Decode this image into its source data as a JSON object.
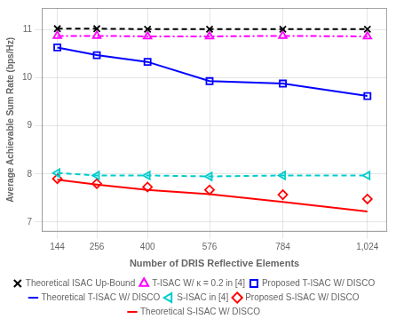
{
  "chart_data": {
    "type": "line",
    "x_label": "Number of DRIS Reflective Elements",
    "y_label": "Average Achievable Sum Rate (bps/Hz)",
    "x": [
      144,
      256,
      400,
      576,
      784,
      1024
    ],
    "series": [
      {
        "name": "Theoretical ISAC Up-Bound",
        "color": "#000000",
        "marker": "x",
        "line_style": "dashed",
        "values": [
          11.02,
          11.02,
          11.01,
          11.01,
          11.01,
          11.01
        ]
      },
      {
        "name": "T-ISAC W/ κ = 0.2 in [4]",
        "color": "#ff00ff",
        "marker": "triangle-up",
        "line_style": "dashdot",
        "values": [
          10.87,
          10.87,
          10.86,
          10.86,
          10.87,
          10.86
        ]
      },
      {
        "name": "Proposed T-ISAC W/ DISCO",
        "color": "#0000ff",
        "marker": "square",
        "line_style": "none",
        "values": [
          10.63,
          10.47,
          10.33,
          9.93,
          9.88,
          9.62
        ]
      },
      {
        "name": "Theoretical T-ISAC W/ DISCO",
        "color": "#0000ff",
        "marker": "none",
        "line_style": "solid",
        "values": [
          10.63,
          10.47,
          10.33,
          9.93,
          9.88,
          9.62
        ]
      },
      {
        "name": "S-ISAC in [4]",
        "color": "#00cccc",
        "marker": "triangle-left",
        "line_style": "dashed",
        "values": [
          8.02,
          7.97,
          7.97,
          7.95,
          7.97,
          7.97
        ]
      },
      {
        "name": "Proposed S-ISAC W/ DISCO",
        "color": "#ff0000",
        "marker": "diamond",
        "line_style": "none",
        "values": [
          7.9,
          7.8,
          7.73,
          7.67,
          7.57,
          7.48
        ]
      },
      {
        "name": "Theoretical S-ISAC W/ DISCO",
        "color": "#ff0000",
        "marker": "none",
        "line_style": "solid",
        "values": [
          7.88,
          7.78,
          7.67,
          7.58,
          7.42,
          7.22
        ]
      }
    ],
    "xlim": [
      100,
      1080
    ],
    "xticks": [
      144,
      256,
      400,
      576,
      784,
      1024
    ],
    "ylim": [
      6.8,
      11.45
    ],
    "yticks": [
      7,
      8,
      9,
      10,
      11
    ],
    "grid": true,
    "legend": "bottom"
  }
}
